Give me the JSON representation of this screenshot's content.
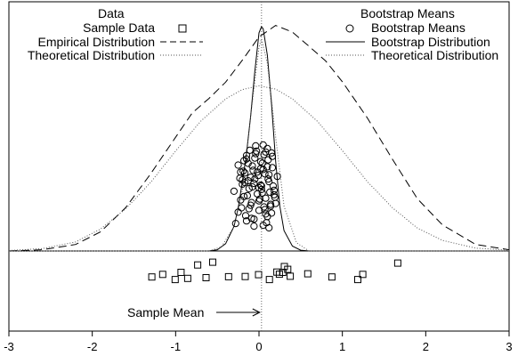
{
  "chart_data": {
    "type": "scatter",
    "title": "",
    "xlabel": "",
    "ylabel": "",
    "xlim": [
      -3,
      3
    ],
    "x_ticks": [
      "-3",
      "-2",
      "-1",
      "0",
      "1",
      "2",
      "3"
    ],
    "grid": false,
    "legend": {
      "left": {
        "title": "Data",
        "entries": [
          "Sample Data",
          "Empirical Distribution",
          "Theoretical Distribution"
        ]
      },
      "right": {
        "title": "Bootstrap Means",
        "entries": [
          "Bootstrap Means",
          "Bootstrap Distribution",
          "Theoretical Distribution"
        ]
      }
    },
    "annotation": {
      "text": "Sample Mean",
      "x": 0.03
    },
    "sample_mean_line_x": 0.03,
    "series": [
      {
        "name": "Sample Data",
        "kind": "points",
        "marker": "square",
        "x": [
          -1.28,
          -1.15,
          -1.0,
          -0.93,
          -0.85,
          -0.73,
          -0.63,
          -0.55,
          -0.36,
          -0.16,
          0.0,
          0.13,
          0.22,
          0.25,
          0.29,
          0.31,
          0.35,
          0.38,
          0.59,
          0.88,
          1.19,
          1.25,
          1.67
        ],
        "y": [
          0.55,
          0.66,
          0.44,
          0.75,
          0.49,
          1.07,
          0.52,
          1.19,
          0.56,
          0.57,
          0.65,
          0.44,
          0.76,
          0.67,
          0.75,
          1.0,
          0.88,
          0.58,
          0.69,
          0.55,
          0.44,
          0.66,
          1.15
        ]
      },
      {
        "name": "Bootstrap Means",
        "kind": "points",
        "marker": "circle",
        "x": [
          -0.28,
          -0.25,
          -0.22,
          -0.2,
          -0.18,
          -0.17,
          -0.15,
          -0.12,
          -0.1,
          -0.08,
          -0.06,
          -0.05,
          -0.03,
          -0.02,
          0.0,
          0.02,
          0.03,
          0.05,
          0.07,
          0.08,
          0.1,
          0.12,
          0.14,
          0.16,
          0.18,
          -0.15,
          -0.1,
          -0.05,
          0.0,
          0.05,
          0.1,
          0.15,
          -0.2,
          -0.12,
          -0.04,
          0.04,
          0.12,
          0.2,
          -0.18,
          -0.08,
          0.02,
          0.08,
          0.16,
          -0.3,
          -0.22,
          -0.14,
          -0.06,
          0.06,
          0.14,
          0.22,
          -0.25,
          -0.16,
          -0.07,
          0.03,
          0.11,
          0.19,
          -0.13,
          -0.01,
          0.09,
          0.17,
          -0.21,
          -0.11,
          0.01,
          0.13,
          -0.19,
          -0.09,
          0.04,
          0.15,
          -0.17,
          -0.04,
          0.07,
          0.18,
          -0.23,
          -0.13,
          0.0,
          0.1,
          -0.09,
          0.05,
          0.12,
          -0.02,
          0.06,
          -0.15,
          0.11,
          -0.06,
          0.02,
          0.08
        ],
        "y": [
          0.07,
          0.2,
          0.34,
          0.52,
          0.38,
          0.65,
          0.85,
          0.47,
          0.28,
          0.73,
          0.12,
          0.58,
          0.9,
          0.41,
          0.22,
          0.78,
          0.5,
          0.05,
          0.64,
          0.36,
          0.93,
          0.55,
          0.29,
          0.71,
          0.45,
          0.1,
          0.6,
          0.82,
          0.33,
          0.69,
          0.15,
          0.88,
          0.57,
          0.24,
          0.96,
          0.42,
          0.63,
          0.3,
          0.79,
          0.49,
          0.7,
          0.18,
          0.84,
          0.44,
          0.66,
          0.39,
          0.53,
          0.86,
          0.27,
          0.61,
          0.74,
          0.16,
          0.68,
          0.46,
          0.8,
          0.37,
          0.56,
          0.62,
          0.08,
          0.5,
          0.25,
          0.91,
          0.35,
          0.43,
          0.67,
          0.31,
          0.76,
          0.19,
          0.54,
          0.87,
          0.23,
          0.4,
          0.59,
          0.76,
          0.48,
          0.72,
          0.13,
          0.97,
          0.02,
          0.66,
          0.26,
          0.81,
          0.58,
          0.04,
          0.51,
          0.89
        ]
      },
      {
        "name": "Empirical Distribution",
        "kind": "line",
        "dash": "dashed",
        "x": [
          -3.0,
          -2.6,
          -2.2,
          -1.9,
          -1.6,
          -1.3,
          -1.0,
          -0.8,
          -0.6,
          -0.4,
          -0.2,
          0.0,
          0.2,
          0.4,
          0.6,
          0.8,
          1.0,
          1.3,
          1.6,
          1.9,
          2.2,
          2.6,
          3.0
        ],
        "y": [
          0.0,
          0.003,
          0.016,
          0.047,
          0.106,
          0.189,
          0.279,
          0.339,
          0.374,
          0.414,
          0.468,
          0.525,
          0.553,
          0.537,
          0.502,
          0.466,
          0.415,
          0.326,
          0.225,
          0.128,
          0.064,
          0.016,
          0.003
        ]
      },
      {
        "name": "Data Theoretical Distribution",
        "kind": "line",
        "dash": "dotted",
        "x": [
          -3.0,
          -2.6,
          -2.2,
          -1.9,
          -1.6,
          -1.3,
          -1.0,
          -0.7,
          -0.4,
          -0.2,
          0.0,
          0.2,
          0.4,
          0.7,
          1.0,
          1.3,
          1.6,
          1.9,
          2.2,
          2.6,
          3.0
        ],
        "y": [
          0.001,
          0.006,
          0.022,
          0.054,
          0.103,
          0.168,
          0.245,
          0.318,
          0.373,
          0.396,
          0.405,
          0.397,
          0.373,
          0.318,
          0.246,
          0.17,
          0.106,
          0.056,
          0.026,
          0.007,
          0.002
        ]
      },
      {
        "name": "Bootstrap Distribution",
        "kind": "line",
        "dash": "solid",
        "x": [
          -3.0,
          -0.6,
          -0.5,
          -0.4,
          -0.3,
          -0.25,
          -0.2,
          -0.15,
          -0.1,
          -0.05,
          0.0,
          0.03,
          0.05,
          0.1,
          0.15,
          0.2,
          0.25,
          0.3,
          0.4,
          0.5,
          0.6,
          3.0
        ],
        "y": [
          0.0,
          0.0,
          0.003,
          0.018,
          0.06,
          0.105,
          0.17,
          0.24,
          0.33,
          0.44,
          0.535,
          0.55,
          0.545,
          0.48,
          0.36,
          0.22,
          0.11,
          0.05,
          0.012,
          0.002,
          0.0,
          0.0
        ]
      },
      {
        "name": "Bootstrap Theoretical Distribution",
        "kind": "line",
        "dash": "dotted",
        "x": [
          -3.0,
          -0.6,
          -0.45,
          -0.3,
          -0.2,
          -0.1,
          0.0,
          0.03,
          0.1,
          0.2,
          0.3,
          0.45,
          0.6,
          3.0
        ],
        "y": [
          0.0,
          0.0,
          0.01,
          0.06,
          0.15,
          0.33,
          0.5,
          0.52,
          0.46,
          0.28,
          0.11,
          0.02,
          0.0,
          0.0
        ]
      }
    ]
  }
}
